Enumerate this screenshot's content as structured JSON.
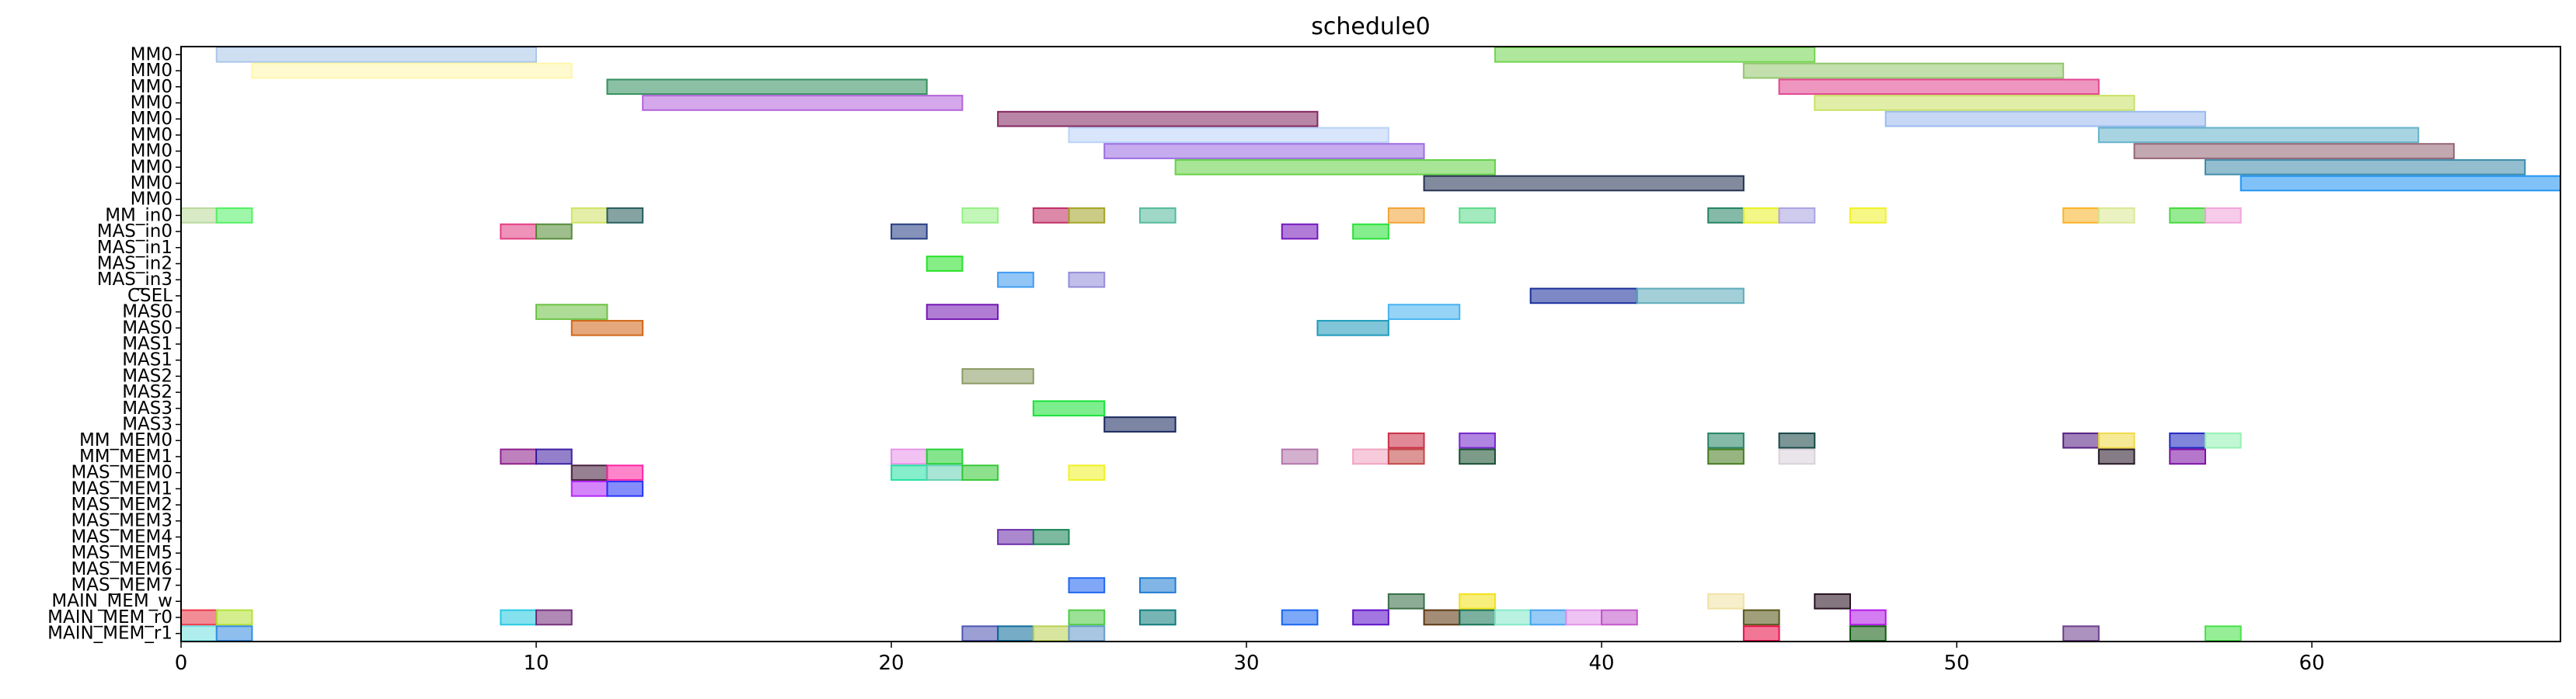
{
  "chart_data": {
    "type": "gantt",
    "title": "schedule0",
    "xlim": [
      0,
      67
    ],
    "xticks": [
      0,
      10,
      20,
      30,
      40,
      50,
      60
    ],
    "rows": [
      "MM0",
      "MM0",
      "MM0",
      "MM0",
      "MM0",
      "MM0",
      "MM0",
      "MM0",
      "MM0",
      "MM0",
      "MM_in0",
      "MAS_in0",
      "MAS_in1",
      "MAS_in2",
      "MAS_in3",
      "CSEL",
      "MAS0",
      "MAS0",
      "MAS1",
      "MAS1",
      "MAS2",
      "MAS2",
      "MAS3",
      "MAS3",
      "MM_MEM0",
      "MM_MEM1",
      "MAS_MEM0",
      "MAS_MEM1",
      "MAS_MEM2",
      "MAS_MEM3",
      "MAS_MEM4",
      "MAS_MEM5",
      "MAS_MEM6",
      "MAS_MEM7",
      "MAIN_MEM_w",
      "MAIN_MEM_r0",
      "MAIN_MEM_r1"
    ],
    "bars": [
      {
        "row": 0,
        "start": 1,
        "end": 10,
        "color": "#a8c4e8"
      },
      {
        "row": 0,
        "start": 37,
        "end": 46,
        "color": "#6ed44a"
      },
      {
        "row": 1,
        "start": 2,
        "end": 11,
        "color": "#fff6a8"
      },
      {
        "row": 1,
        "start": 44,
        "end": 53,
        "color": "#8fc46a"
      },
      {
        "row": 2,
        "start": 12,
        "end": 21,
        "color": "#2e8c5a"
      },
      {
        "row": 2,
        "start": 45,
        "end": 54,
        "color": "#e0408c"
      },
      {
        "row": 3,
        "start": 13,
        "end": 22,
        "color": "#b060d8"
      },
      {
        "row": 3,
        "start": 46,
        "end": 55,
        "color": "#c8e060"
      },
      {
        "row": 4,
        "start": 23,
        "end": 32,
        "color": "#80205c"
      },
      {
        "row": 4,
        "start": 48,
        "end": 57,
        "color": "#98b8ee"
      },
      {
        "row": 5,
        "start": 25,
        "end": 34,
        "color": "#b8d0f8"
      },
      {
        "row": 5,
        "start": 54,
        "end": 63,
        "color": "#60b0c8"
      },
      {
        "row": 6,
        "start": 26,
        "end": 35,
        "color": "#9868e0"
      },
      {
        "row": 6,
        "start": 55,
        "end": 64,
        "color": "#906070"
      },
      {
        "row": 7,
        "start": 28,
        "end": 37,
        "color": "#60d040"
      },
      {
        "row": 7,
        "start": 57,
        "end": 66,
        "color": "#3888a8"
      },
      {
        "row": 8,
        "start": 35,
        "end": 44,
        "color": "#1c2c4c"
      },
      {
        "row": 8,
        "start": 58,
        "end": 67,
        "color": "#1890f0"
      },
      {
        "row": 10,
        "start": 0,
        "end": 1,
        "color": "#b8d898"
      },
      {
        "row": 10,
        "start": 1,
        "end": 2,
        "color": "#4ef060"
      },
      {
        "row": 10,
        "start": 11,
        "end": 12,
        "color": "#d0e060"
      },
      {
        "row": 10,
        "start": 12,
        "end": 13,
        "color": "#205858"
      },
      {
        "row": 10,
        "start": 22,
        "end": 23,
        "color": "#90f080"
      },
      {
        "row": 10,
        "start": 24,
        "end": 25,
        "color": "#c02860"
      },
      {
        "row": 10,
        "start": 25,
        "end": 26,
        "color": "#a0a020"
      },
      {
        "row": 10,
        "start": 27,
        "end": 28,
        "color": "#50b898"
      },
      {
        "row": 10,
        "start": 34,
        "end": 35,
        "color": "#f0a030"
      },
      {
        "row": 10,
        "start": 36,
        "end": 37,
        "color": "#58d888"
      },
      {
        "row": 10,
        "start": 43,
        "end": 44,
        "color": "#208060"
      },
      {
        "row": 10,
        "start": 44,
        "end": 45,
        "color": "#e8f020"
      },
      {
        "row": 10,
        "start": 45,
        "end": 46,
        "color": "#a8a0e0"
      },
      {
        "row": 10,
        "start": 47,
        "end": 48,
        "color": "#f0f020"
      },
      {
        "row": 10,
        "start": 53,
        "end": 54,
        "color": "#f8b020"
      },
      {
        "row": 10,
        "start": 54,
        "end": 55,
        "color": "#d8e890"
      },
      {
        "row": 10,
        "start": 56,
        "end": 57,
        "color": "#40d838"
      },
      {
        "row": 10,
        "start": 57,
        "end": 58,
        "color": "#f0a0d8"
      },
      {
        "row": 11,
        "start": 9,
        "end": 10,
        "color": "#e03880"
      },
      {
        "row": 11,
        "start": 10,
        "end": 11,
        "color": "#508830"
      },
      {
        "row": 11,
        "start": 20,
        "end": 21,
        "color": "#203880"
      },
      {
        "row": 11,
        "start": 31,
        "end": 32,
        "color": "#7010b8"
      },
      {
        "row": 11,
        "start": 33,
        "end": 34,
        "color": "#20e030"
      },
      {
        "row": 13,
        "start": 21,
        "end": 22,
        "color": "#20e020"
      },
      {
        "row": 14,
        "start": 23,
        "end": 24,
        "color": "#3898f0"
      },
      {
        "row": 14,
        "start": 25,
        "end": 26,
        "color": "#9088d8"
      },
      {
        "row": 15,
        "start": 38,
        "end": 41,
        "color": "#102898"
      },
      {
        "row": 15,
        "start": 41,
        "end": 44,
        "color": "#58a8b8"
      },
      {
        "row": 16,
        "start": 10,
        "end": 12,
        "color": "#68c040"
      },
      {
        "row": 16,
        "start": 21,
        "end": 23,
        "color": "#7010b0"
      },
      {
        "row": 16,
        "start": 34,
        "end": 36,
        "color": "#40b0f0"
      },
      {
        "row": 17,
        "start": 11,
        "end": 13,
        "color": "#d06010"
      },
      {
        "row": 17,
        "start": 32,
        "end": 34,
        "color": "#1898b8"
      },
      {
        "row": 20,
        "start": 22,
        "end": 24,
        "color": "#889860"
      },
      {
        "row": 22,
        "start": 24,
        "end": 26,
        "color": "#10e030"
      },
      {
        "row": 23,
        "start": 26,
        "end": 28,
        "color": "#102058"
      },
      {
        "row": 24,
        "start": 34,
        "end": 35,
        "color": "#c82840"
      },
      {
        "row": 24,
        "start": 36,
        "end": 37,
        "color": "#7020c8"
      },
      {
        "row": 24,
        "start": 43,
        "end": 44,
        "color": "#208060"
      },
      {
        "row": 24,
        "start": 45,
        "end": 46,
        "color": "#104040"
      },
      {
        "row": 24,
        "start": 53,
        "end": 54,
        "color": "#501880"
      },
      {
        "row": 24,
        "start": 54,
        "end": 55,
        "color": "#f0d840"
      },
      {
        "row": 24,
        "start": 56,
        "end": 57,
        "color": "#1820c0"
      },
      {
        "row": 24,
        "start": 57,
        "end": 58,
        "color": "#90f0b0"
      },
      {
        "row": 25,
        "start": 9,
        "end": 10,
        "color": "#8a1888"
      },
      {
        "row": 25,
        "start": 10,
        "end": 11,
        "color": "#3818a0"
      },
      {
        "row": 25,
        "start": 20,
        "end": 21,
        "color": "#e890e8"
      },
      {
        "row": 25,
        "start": 21,
        "end": 22,
        "color": "#20d030"
      },
      {
        "row": 25,
        "start": 31,
        "end": 32,
        "color": "#b070a8"
      },
      {
        "row": 25,
        "start": 33,
        "end": 34,
        "color": "#f0a0c0"
      },
      {
        "row": 25,
        "start": 34,
        "end": 35,
        "color": "#c04040"
      },
      {
        "row": 25,
        "start": 36,
        "end": 37,
        "color": "#104828"
      },
      {
        "row": 25,
        "start": 43,
        "end": 44,
        "color": "#407818"
      },
      {
        "row": 25,
        "start": 45,
        "end": 46,
        "color": "#d8d0d8"
      },
      {
        "row": 25,
        "start": 54,
        "end": 55,
        "color": "#201020"
      },
      {
        "row": 25,
        "start": 56,
        "end": 57,
        "color": "#7808a0"
      },
      {
        "row": 26,
        "start": 11,
        "end": 12,
        "color": "#401838"
      },
      {
        "row": 26,
        "start": 12,
        "end": 13,
        "color": "#ff20a0"
      },
      {
        "row": 26,
        "start": 20,
        "end": 21,
        "color": "#20e0a0"
      },
      {
        "row": 26,
        "start": 21,
        "end": 22,
        "color": "#60d0b0"
      },
      {
        "row": 26,
        "start": 22,
        "end": 23,
        "color": "#30c830"
      },
      {
        "row": 26,
        "start": 25,
        "end": 26,
        "color": "#f0f020"
      },
      {
        "row": 27,
        "start": 11,
        "end": 12,
        "color": "#b020f8"
      },
      {
        "row": 27,
        "start": 12,
        "end": 13,
        "color": "#2030f8"
      },
      {
        "row": 30,
        "start": 23,
        "end": 24,
        "color": "#6828a8"
      },
      {
        "row": 30,
        "start": 24,
        "end": 25,
        "color": "#108050"
      },
      {
        "row": 33,
        "start": 25,
        "end": 26,
        "color": "#1860f0"
      },
      {
        "row": 33,
        "start": 27,
        "end": 28,
        "color": "#1878d0"
      },
      {
        "row": 34,
        "start": 34,
        "end": 35,
        "color": "#306840"
      },
      {
        "row": 34,
        "start": 36,
        "end": 37,
        "color": "#f0e010"
      },
      {
        "row": 34,
        "start": 43,
        "end": 44,
        "color": "#f0e0a0"
      },
      {
        "row": 34,
        "start": 46,
        "end": 47,
        "color": "#200818"
      },
      {
        "row": 35,
        "start": 0,
        "end": 1,
        "color": "#e83040"
      },
      {
        "row": 35,
        "start": 1,
        "end": 2,
        "color": "#b0e030"
      },
      {
        "row": 35,
        "start": 9,
        "end": 10,
        "color": "#20c8e0"
      },
      {
        "row": 35,
        "start": 10,
        "end": 11,
        "color": "#702878"
      },
      {
        "row": 35,
        "start": 25,
        "end": 26,
        "color": "#48c840"
      },
      {
        "row": 35,
        "start": 27,
        "end": 28,
        "color": "#087878"
      },
      {
        "row": 35,
        "start": 31,
        "end": 32,
        "color": "#1060f0"
      },
      {
        "row": 35,
        "start": 33,
        "end": 34,
        "color": "#5808c8"
      },
      {
        "row": 35,
        "start": 35,
        "end": 36,
        "color": "#583008"
      },
      {
        "row": 35,
        "start": 36,
        "end": 37,
        "color": "#107050"
      },
      {
        "row": 35,
        "start": 37,
        "end": 38,
        "color": "#80e8c8"
      },
      {
        "row": 35,
        "start": 38,
        "end": 39,
        "color": "#40a0f0"
      },
      {
        "row": 35,
        "start": 39,
        "end": 40,
        "color": "#e090e8"
      },
      {
        "row": 35,
        "start": 40,
        "end": 41,
        "color": "#c050c8"
      },
      {
        "row": 35,
        "start": 44,
        "end": 45,
        "color": "#505010"
      },
      {
        "row": 35,
        "start": 47,
        "end": 48,
        "color": "#b010e8"
      },
      {
        "row": 36,
        "start": 0,
        "end": 1,
        "color": "#70e0e0"
      },
      {
        "row": 36,
        "start": 1,
        "end": 2,
        "color": "#3088e0"
      },
      {
        "row": 36,
        "start": 22,
        "end": 23,
        "color": "#4850b0"
      },
      {
        "row": 36,
        "start": 23,
        "end": 24,
        "color": "#086898"
      },
      {
        "row": 36,
        "start": 24,
        "end": 25,
        "color": "#b8d050"
      },
      {
        "row": 36,
        "start": 25,
        "end": 26,
        "color": "#6098c8"
      },
      {
        "row": 36,
        "start": 44,
        "end": 45,
        "color": "#e80840"
      },
      {
        "row": 36,
        "start": 47,
        "end": 48,
        "color": "#085808"
      },
      {
        "row": 36,
        "start": 53,
        "end": 54,
        "color": "#683888"
      },
      {
        "row": 36,
        "start": 57,
        "end": 58,
        "color": "#40e040"
      }
    ]
  }
}
